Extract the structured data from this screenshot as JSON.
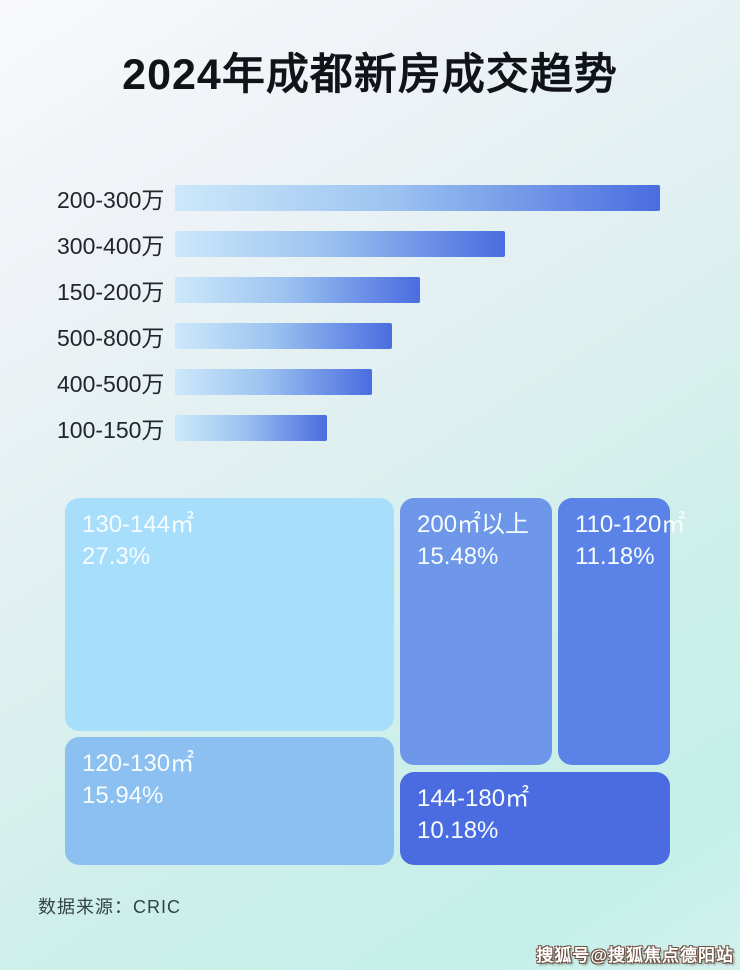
{
  "page": {
    "title": "2024年成都新房成交趋势",
    "source_label": "数据来源：CRIC",
    "watermark": "搜狐号@搜狐焦点德阳站",
    "background_colors": {
      "top_left": "#f8f9fb",
      "bottom_right": "#c5efe9"
    }
  },
  "chart_data": [
    {
      "type": "bar",
      "title": "2024年成都新房成交趋势",
      "orientation": "horizontal",
      "axis_shown": false,
      "value_labels_shown": false,
      "categories": [
        "200-300万",
        "300-400万",
        "150-200万",
        "500-800万",
        "400-500万",
        "100-150万"
      ],
      "values_pct_of_longest_bar": [
        100,
        68,
        50.5,
        44.8,
        40.7,
        31.4
      ],
      "bar_gradient": [
        "#cde8fa",
        "#4a6ce0"
      ]
    },
    {
      "type": "treemap",
      "cells": [
        {
          "label": "130-144㎡",
          "value": 27.3,
          "display": "27.3%",
          "color": "#a6defb"
        },
        {
          "label": "200㎡以上",
          "value": 15.48,
          "display": "15.48%",
          "color": "#6e97e9"
        },
        {
          "label": "110-120㎡",
          "value": 11.18,
          "display": "11.18%",
          "color": "#5b82e7"
        },
        {
          "label": "120-130㎡",
          "value": 15.94,
          "display": "15.94%",
          "color": "#8cc0f1"
        },
        {
          "label": "144-180㎡",
          "value": 10.18,
          "display": "10.18%",
          "color": "#4a6ce0"
        }
      ]
    }
  ]
}
